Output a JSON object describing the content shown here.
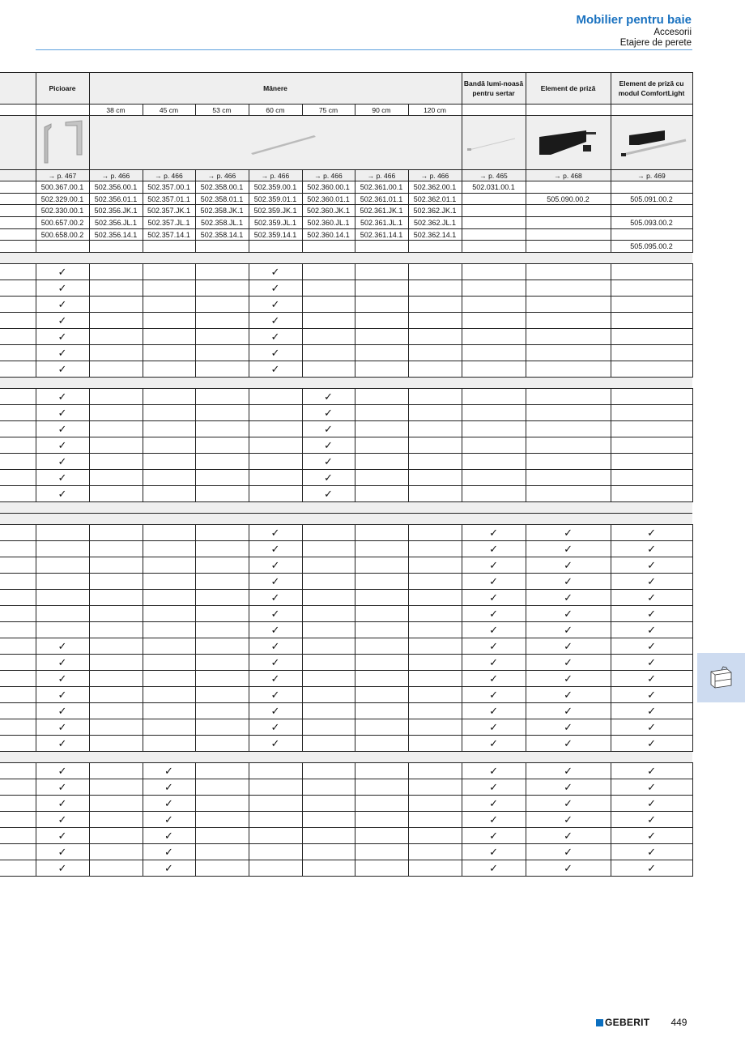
{
  "header": {
    "title": "Mobilier pentru baie",
    "subtitle1": "Accesorii",
    "subtitle2": "Etajere de perete",
    "accent": "#1a72c0"
  },
  "table": {
    "groups": {
      "legs": "Picioare",
      "handles": "Mânere",
      "light_strip": "Bandă lumi-noasă pentru sertar",
      "socket": "Element de priză",
      "socket_comfort": "Element de priză cu modul ComfortLight"
    },
    "sizes": [
      "38 cm",
      "45 cm",
      "53 cm",
      "60 cm",
      "75 cm",
      "90 cm",
      "120 cm"
    ],
    "refs": [
      "→ p. 467",
      "→ p. 466",
      "→ p. 466",
      "→ p. 466",
      "→ p. 466",
      "→ p. 466",
      "→ p. 466",
      "→ p. 466",
      "→ p. 465",
      "→ p. 468",
      "→ p. 469"
    ],
    "codes": [
      [
        "500.367.00.1",
        "502.356.00.1",
        "502.357.00.1",
        "502.358.00.1",
        "502.359.00.1",
        "502.360.00.1",
        "502.361.00.1",
        "502.362.00.1",
        "502.031.00.1",
        "",
        ""
      ],
      [
        "502.329.00.1",
        "502.356.01.1",
        "502.357.01.1",
        "502.358.01.1",
        "502.359.01.1",
        "502.360.01.1",
        "502.361.01.1",
        "502.362.01.1",
        "",
        "505.090.00.2",
        "505.091.00.2"
      ],
      [
        "502.330.00.1",
        "502.356.JK.1",
        "502.357.JK.1",
        "502.358.JK.1",
        "502.359.JK.1",
        "502.360.JK.1",
        "502.361.JK.1",
        "502.362.JK.1",
        "",
        "",
        ""
      ],
      [
        "500.657.00.2",
        "502.356.JL.1",
        "502.357.JL.1",
        "502.358.JL.1",
        "502.359.JL.1",
        "502.360.JL.1",
        "502.361.JL.1",
        "502.362.JL.1",
        "",
        "",
        "505.093.00.2"
      ],
      [
        "500.658.00.2",
        "502.356.14.1",
        "502.357.14.1",
        "502.358.14.1",
        "502.359.14.1",
        "502.360.14.1",
        "502.361.14.1",
        "502.362.14.1",
        "",
        "",
        ""
      ],
      [
        "",
        "",
        "",
        "",
        "",
        "",
        "",
        "",
        "",
        "",
        "505.095.00.2"
      ]
    ],
    "check_symbol": "✓",
    "sections": [
      {
        "separators": 1,
        "rows": [
          [
            1,
            5
          ],
          [
            1,
            5
          ],
          [
            1,
            5
          ],
          [
            1,
            5
          ],
          [
            1,
            5
          ],
          [
            1,
            5
          ],
          [
            1,
            5
          ]
        ]
      },
      {
        "separators": 1,
        "rows": [
          [
            1,
            6
          ],
          [
            1,
            6
          ],
          [
            1,
            6
          ],
          [
            1,
            6
          ],
          [
            1,
            6
          ],
          [
            1,
            6
          ],
          [
            1,
            6
          ]
        ]
      },
      {
        "separators": 2,
        "rows": [
          [
            5,
            9,
            10,
            11
          ],
          [
            5,
            9,
            10,
            11
          ],
          [
            5,
            9,
            10,
            11
          ],
          [
            5,
            9,
            10,
            11
          ],
          [
            5,
            9,
            10,
            11
          ],
          [
            5,
            9,
            10,
            11
          ],
          [
            5,
            9,
            10,
            11
          ],
          [
            1,
            5,
            9,
            10,
            11
          ],
          [
            1,
            5,
            9,
            10,
            11
          ],
          [
            1,
            5,
            9,
            10,
            11
          ],
          [
            1,
            5,
            9,
            10,
            11
          ],
          [
            1,
            5,
            9,
            10,
            11
          ],
          [
            1,
            5,
            9,
            10,
            11
          ],
          [
            1,
            5,
            9,
            10,
            11
          ]
        ]
      },
      {
        "separators": 1,
        "rows": [
          [
            1,
            3,
            9,
            10,
            11
          ],
          [
            1,
            3,
            9,
            10,
            11
          ],
          [
            1,
            3,
            9,
            10,
            11
          ],
          [
            1,
            3,
            9,
            10,
            11
          ],
          [
            1,
            3,
            9,
            10,
            11
          ],
          [
            1,
            3,
            9,
            10,
            11
          ],
          [
            1,
            3,
            9,
            10,
            11
          ]
        ]
      }
    ]
  },
  "side_tab": {
    "icon": "vanity-unit-icon",
    "color": "#cddbf0"
  },
  "footer": {
    "brand": "GEBERIT",
    "brand_color": "#0b6fc0",
    "page": "449"
  }
}
